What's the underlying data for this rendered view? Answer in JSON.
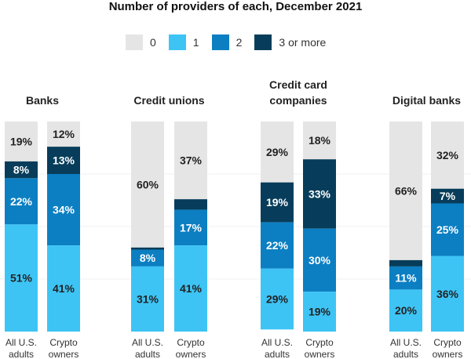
{
  "chart_data": {
    "type": "bar",
    "stacked": true,
    "title": "Number of providers of each, December 2021",
    "legend": [
      {
        "name": "0",
        "color": "#e5e5e5"
      },
      {
        "name": "1",
        "color": "#3dc4f5"
      },
      {
        "name": "2",
        "color": "#0c7fc2"
      },
      {
        "name": "3 or more",
        "color": "#073d5a"
      }
    ],
    "groups": [
      {
        "title": [
          "Banks"
        ],
        "bars": [
          {
            "label": [
              "All U.S.",
              "adults"
            ],
            "values": [
              {
                "series": "0",
                "value": 19,
                "label": "19%"
              },
              {
                "series": "3 or more",
                "value": 8,
                "label": "8%"
              },
              {
                "series": "2",
                "value": 22,
                "label": "22%"
              },
              {
                "series": "1",
                "value": 51,
                "label": "51%"
              }
            ]
          },
          {
            "label": [
              "Crypto",
              "owners"
            ],
            "values": [
              {
                "series": "0",
                "value": 12,
                "label": "12%"
              },
              {
                "series": "3 or more",
                "value": 13,
                "label": "13%"
              },
              {
                "series": "2",
                "value": 34,
                "label": "34%"
              },
              {
                "series": "1",
                "value": 41,
                "label": "41%"
              }
            ]
          }
        ]
      },
      {
        "title": [
          "Credit unions"
        ],
        "bars": [
          {
            "label": [
              "All U.S.",
              "adults"
            ],
            "values": [
              {
                "series": "0",
                "value": 60,
                "label": "60%"
              },
              {
                "series": "3 or more",
                "value": 1,
                "label": ""
              },
              {
                "series": "2",
                "value": 8,
                "label": "8%"
              },
              {
                "series": "1",
                "value": 31,
                "label": "31%"
              }
            ]
          },
          {
            "label": [
              "Crypto",
              "owners"
            ],
            "values": [
              {
                "series": "0",
                "value": 37,
                "label": "37%"
              },
              {
                "series": "3 or more",
                "value": 5,
                "label": ""
              },
              {
                "series": "2",
                "value": 17,
                "label": "17%"
              },
              {
                "series": "1",
                "value": 41,
                "label": "41%"
              }
            ]
          }
        ]
      },
      {
        "title": [
          "Credit card",
          "companies"
        ],
        "bars": [
          {
            "label": [
              "All U.S.",
              "adults"
            ],
            "values": [
              {
                "series": "0",
                "value": 29,
                "label": "29%"
              },
              {
                "series": "3 or more",
                "value": 19,
                "label": "19%"
              },
              {
                "series": "2",
                "value": 22,
                "label": "22%"
              },
              {
                "series": "1",
                "value": 29,
                "label": "29%"
              }
            ]
          },
          {
            "label": [
              "Crypto",
              "owners"
            ],
            "values": [
              {
                "series": "0",
                "value": 18,
                "label": "18%"
              },
              {
                "series": "3 or more",
                "value": 33,
                "label": "33%"
              },
              {
                "series": "2",
                "value": 30,
                "label": "30%"
              },
              {
                "series": "1",
                "value": 19,
                "label": "19%"
              }
            ]
          }
        ]
      },
      {
        "title": [
          "Digital banks"
        ],
        "bars": [
          {
            "label": [
              "All U.S.",
              "adults"
            ],
            "values": [
              {
                "series": "0",
                "value": 66,
                "label": "66%"
              },
              {
                "series": "3 or more",
                "value": 3,
                "label": ""
              },
              {
                "series": "2",
                "value": 11,
                "label": "11%"
              },
              {
                "series": "1",
                "value": 20,
                "label": "20%"
              }
            ]
          },
          {
            "label": [
              "Crypto",
              "owners"
            ],
            "values": [
              {
                "series": "0",
                "value": 32,
                "label": "32%"
              },
              {
                "series": "3 or more",
                "value": 7,
                "label": "7%"
              },
              {
                "series": "2",
                "value": 25,
                "label": "25%"
              },
              {
                "series": "1",
                "value": 36,
                "label": "36%"
              }
            ]
          }
        ]
      }
    ],
    "ylim": [
      0,
      100
    ],
    "grid": true
  }
}
